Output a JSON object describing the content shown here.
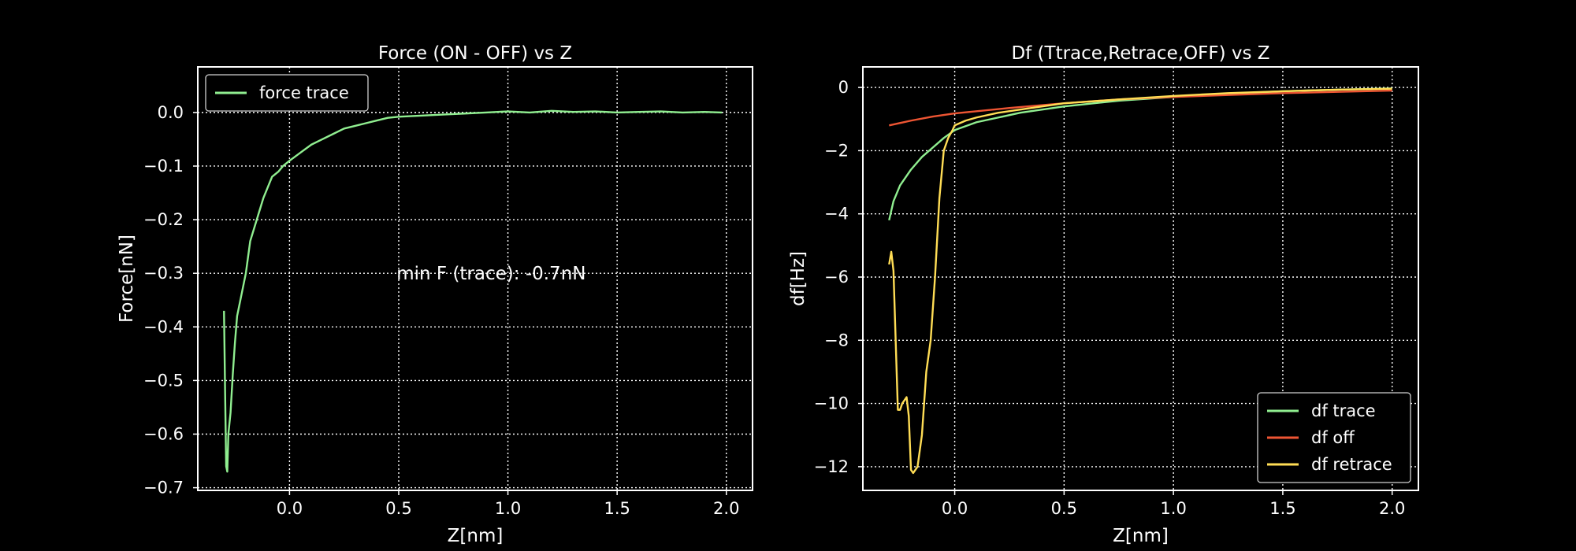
{
  "chart_data": [
    {
      "type": "line",
      "title": "Force (ON - OFF) vs Z",
      "xlabel": "Z[nm]",
      "ylabel": "Force[nN]",
      "xlim": [
        -0.42,
        2.12
      ],
      "ylim": [
        -0.705,
        0.085
      ],
      "xticks": [
        0.0,
        0.5,
        1.0,
        1.5,
        2.0
      ],
      "xtick_labels": [
        "0.0",
        "0.5",
        "1.0",
        "1.5",
        "2.0"
      ],
      "yticks": [
        0.0,
        -0.1,
        -0.2,
        -0.3,
        -0.4,
        -0.5,
        -0.6,
        -0.7
      ],
      "ytick_labels": [
        "0.0",
        "−0.1",
        "−0.2",
        "−0.3",
        "−0.4",
        "−0.5",
        "−0.6",
        "−0.7"
      ],
      "grid": true,
      "legend_position": "upper-left",
      "annotation": "min F (trace): -0.7nN",
      "series": [
        {
          "name": "force trace",
          "color": "#90ee90",
          "x": [
            -0.3,
            -0.295,
            -0.29,
            -0.285,
            -0.28,
            -0.27,
            -0.26,
            -0.25,
            -0.24,
            -0.22,
            -0.2,
            -0.18,
            -0.15,
            -0.12,
            -0.1,
            -0.08,
            -0.05,
            -0.03,
            0.0,
            0.05,
            0.1,
            0.15,
            0.2,
            0.25,
            0.3,
            0.35,
            0.4,
            0.45,
            0.5,
            0.6,
            0.7,
            0.8,
            0.9,
            1.0,
            1.1,
            1.2,
            1.3,
            1.4,
            1.5,
            1.6,
            1.7,
            1.8,
            1.9,
            1.98
          ],
          "y": [
            -0.37,
            -0.52,
            -0.66,
            -0.67,
            -0.6,
            -0.56,
            -0.49,
            -0.43,
            -0.38,
            -0.34,
            -0.3,
            -0.24,
            -0.2,
            -0.16,
            -0.14,
            -0.12,
            -0.11,
            -0.1,
            -0.09,
            -0.075,
            -0.06,
            -0.05,
            -0.04,
            -0.03,
            -0.025,
            -0.02,
            -0.015,
            -0.01,
            -0.008,
            -0.006,
            -0.004,
            -0.002,
            0.0,
            0.002,
            0.0,
            0.003,
            0.001,
            0.002,
            0.0,
            0.001,
            0.002,
            0.0,
            0.001,
            0.0
          ]
        }
      ]
    },
    {
      "type": "line",
      "title": "Df (Ttrace,Retrace,OFF) vs Z",
      "xlabel": "Z[nm]",
      "ylabel": "df[Hz]",
      "xlim": [
        -0.42,
        2.12
      ],
      "ylim": [
        -12.75,
        0.65
      ],
      "xticks": [
        0.0,
        0.5,
        1.0,
        1.5,
        2.0
      ],
      "xtick_labels": [
        "0.0",
        "0.5",
        "1.0",
        "1.5",
        "2.0"
      ],
      "yticks": [
        0,
        -2,
        -4,
        -6,
        -8,
        -10,
        -12
      ],
      "ytick_labels": [
        "0",
        "−2",
        "−4",
        "−6",
        "−8",
        "−10",
        "−12"
      ],
      "grid": true,
      "legend_position": "lower-right",
      "series": [
        {
          "name": "df trace",
          "color": "#90ee90",
          "x": [
            -0.3,
            -0.28,
            -0.25,
            -0.2,
            -0.15,
            -0.1,
            -0.05,
            0.0,
            0.1,
            0.2,
            0.3,
            0.5,
            0.75,
            1.0,
            1.25,
            1.5,
            1.75,
            2.0
          ],
          "y": [
            -4.2,
            -3.6,
            -3.1,
            -2.6,
            -2.2,
            -1.9,
            -1.6,
            -1.35,
            -1.1,
            -0.95,
            -0.8,
            -0.6,
            -0.42,
            -0.3,
            -0.2,
            -0.12,
            -0.07,
            -0.03
          ]
        },
        {
          "name": "df off",
          "color": "#ee5533",
          "x": [
            -0.3,
            -0.2,
            -0.1,
            0.0,
            0.25,
            0.5,
            0.75,
            1.0,
            1.25,
            1.5,
            1.75,
            2.0
          ],
          "y": [
            -1.2,
            -1.05,
            -0.92,
            -0.82,
            -0.65,
            -0.5,
            -0.38,
            -0.3,
            -0.24,
            -0.18,
            -0.14,
            -0.1
          ]
        },
        {
          "name": "df retrace",
          "color": "#ffdd55",
          "x": [
            -0.3,
            -0.29,
            -0.28,
            -0.27,
            -0.26,
            -0.25,
            -0.24,
            -0.23,
            -0.22,
            -0.21,
            -0.2,
            -0.19,
            -0.18,
            -0.17,
            -0.15,
            -0.13,
            -0.11,
            -0.09,
            -0.07,
            -0.05,
            -0.03,
            -0.01,
            0.0,
            0.05,
            0.1,
            0.2,
            0.3,
            0.5,
            0.75,
            1.0,
            1.25,
            1.5,
            1.75,
            2.0
          ],
          "y": [
            -5.6,
            -5.2,
            -5.8,
            -8.0,
            -10.2,
            -10.2,
            -10.0,
            -9.9,
            -9.8,
            -10.4,
            -12.1,
            -12.2,
            -12.1,
            -12.0,
            -11.0,
            -9.0,
            -8.0,
            -6.0,
            -3.5,
            -2.0,
            -1.6,
            -1.35,
            -1.2,
            -1.05,
            -0.95,
            -0.8,
            -0.7,
            -0.5,
            -0.38,
            -0.27,
            -0.18,
            -0.12,
            -0.07,
            -0.04
          ]
        }
      ]
    }
  ]
}
